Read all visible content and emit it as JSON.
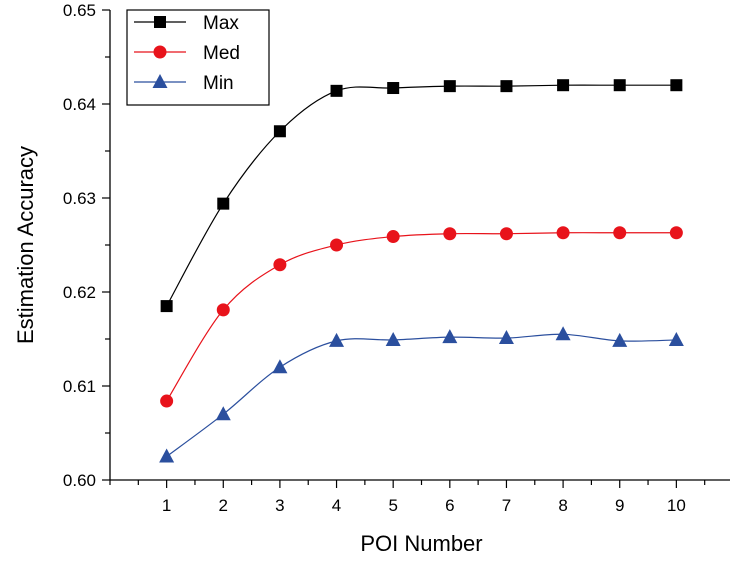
{
  "chart_data": {
    "type": "line",
    "title": "",
    "xlabel": "POI Number",
    "ylabel": "Estimation Accuracy",
    "x": [
      1,
      2,
      3,
      4,
      5,
      6,
      7,
      8,
      9,
      10
    ],
    "xlim": [
      0,
      11
    ],
    "ylim": [
      0.6,
      0.65
    ],
    "xticks": [
      "1",
      "2",
      "3",
      "4",
      "5",
      "6",
      "7",
      "8",
      "9",
      "10"
    ],
    "yticks": [
      "0.60",
      "0.61",
      "0.62",
      "0.63",
      "0.64",
      "0.65"
    ],
    "grid": false,
    "legend_position": "top-left",
    "series": [
      {
        "name": "Max",
        "marker": "square",
        "color": "#000000",
        "values": [
          0.6185,
          0.6294,
          0.6371,
          0.6414,
          0.6417,
          0.6419,
          0.6419,
          0.642,
          0.642,
          0.642
        ]
      },
      {
        "name": "Med",
        "marker": "circle",
        "color": "#e8131b",
        "values": [
          0.6084,
          0.6181,
          0.6229,
          0.625,
          0.6259,
          0.6262,
          0.6262,
          0.6263,
          0.6263,
          0.6263
        ]
      },
      {
        "name": "Min",
        "marker": "triangle",
        "color": "#2b4f9e",
        "values": [
          0.6025,
          0.607,
          0.612,
          0.6148,
          0.6149,
          0.6152,
          0.6151,
          0.6155,
          0.6148,
          0.6149
        ]
      }
    ]
  }
}
